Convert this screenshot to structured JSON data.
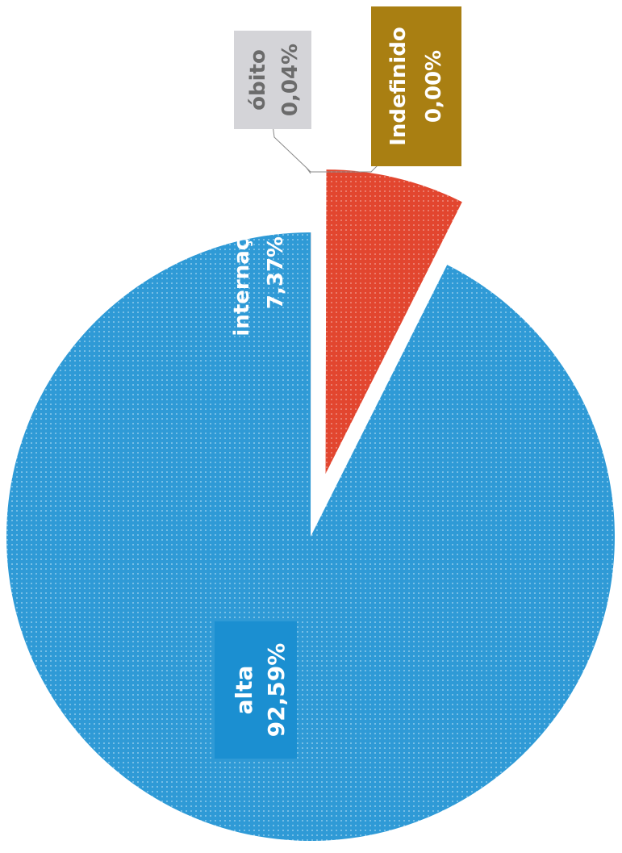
{
  "chart_data": {
    "type": "pie",
    "slices": [
      {
        "label": "alta",
        "value": 92.59,
        "value_text": "92,59%",
        "color": "#2f9ad6",
        "label_box_color": "#1b8fd1",
        "text_color": "#ffffff",
        "exploded": false
      },
      {
        "label": "internação",
        "value": 7.37,
        "value_text": "7,37%",
        "color": "#e2462f",
        "label_box_color": "#e2462f",
        "text_color": "#ffffff",
        "exploded": true
      },
      {
        "label": "óbito",
        "value": 0.04,
        "value_text": "0,04%",
        "color": "#d4d4d8",
        "label_box_color": "#d4d4d8",
        "text_color": "#6b6b6b",
        "exploded": false
      },
      {
        "label": "Indefinido",
        "value": 0.0,
        "value_text": "0,00%",
        "color": "#a97f12",
        "label_box_color": "#a97f12",
        "text_color": "#ffffff",
        "exploded": false
      }
    ],
    "orientation": "rotated 90° counter-clockwise",
    "pattern": "dotted texture"
  }
}
